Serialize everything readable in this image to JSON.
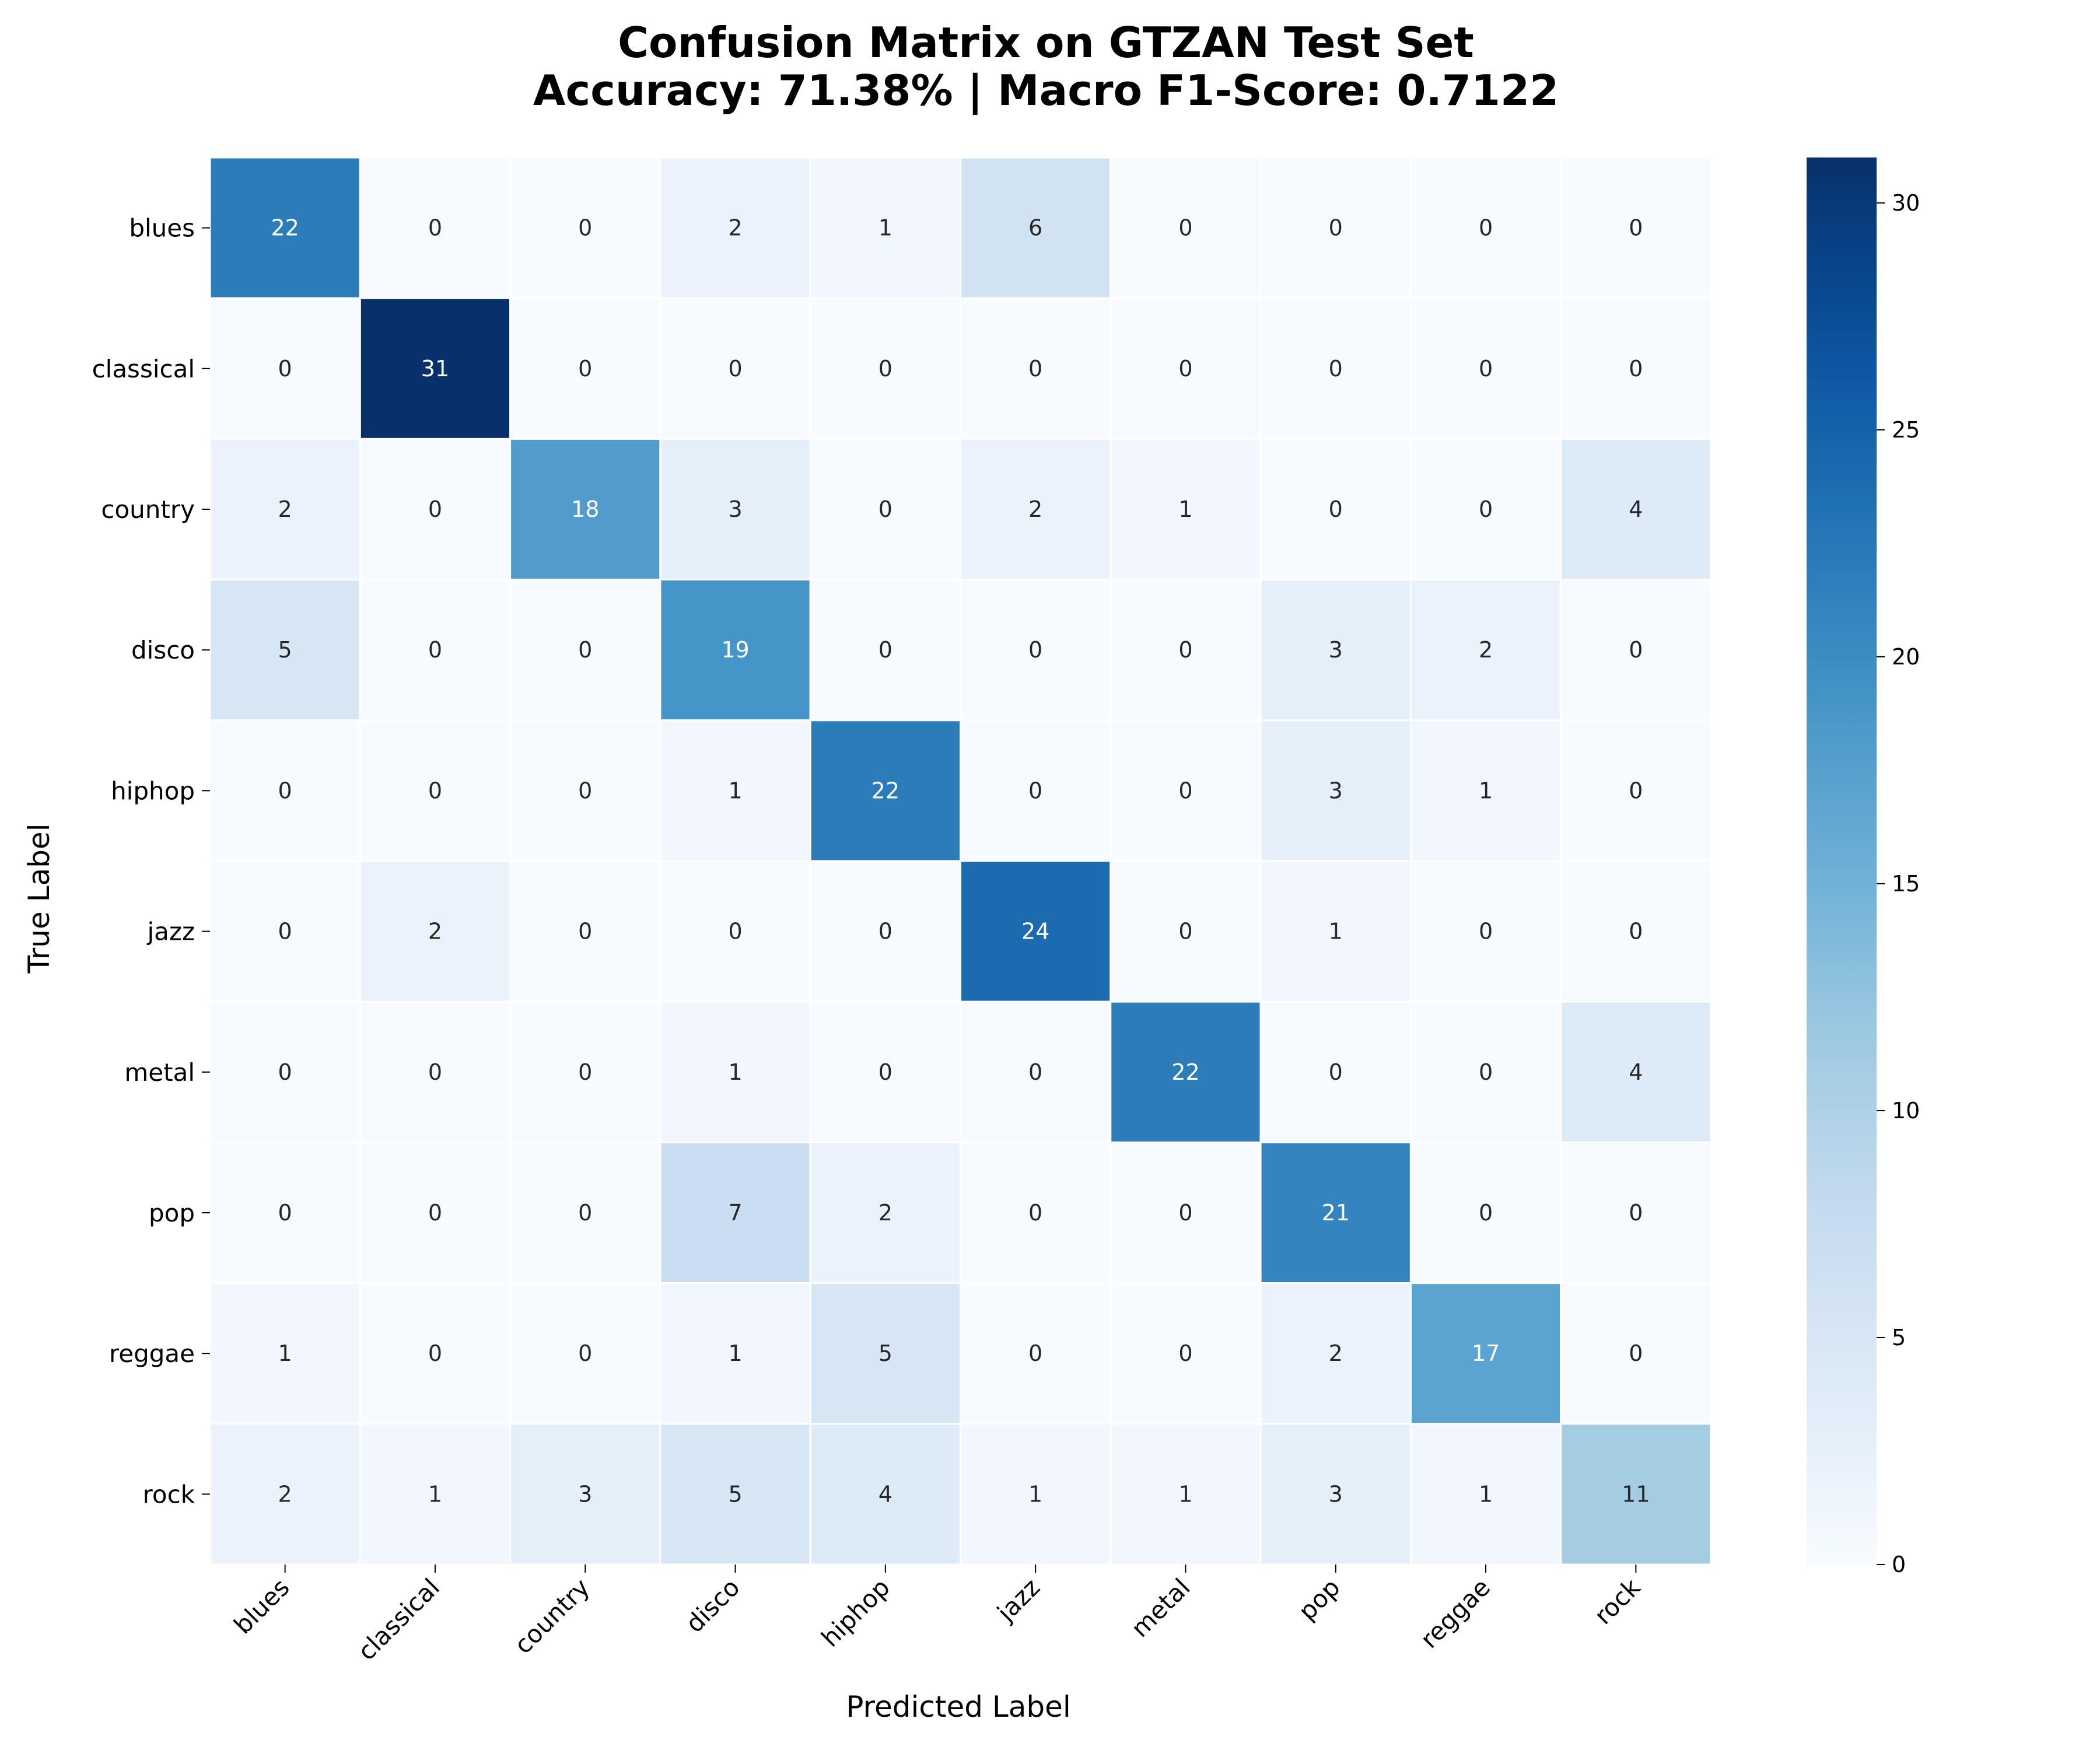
{
  "chart_data": {
    "type": "heatmap",
    "title": "Confusion Matrix on GTZAN Test Set",
    "subtitle": "Accuracy: 71.38% | Macro F1-Score: 0.7122",
    "xlabel": "Predicted Label",
    "ylabel": "True Label",
    "x_categories": [
      "blues",
      "classical",
      "country",
      "disco",
      "hiphop",
      "jazz",
      "metal",
      "pop",
      "reggae",
      "rock"
    ],
    "y_categories": [
      "blues",
      "classical",
      "country",
      "disco",
      "hiphop",
      "jazz",
      "metal",
      "pop",
      "reggae",
      "rock"
    ],
    "values": [
      [
        22,
        0,
        0,
        2,
        1,
        6,
        0,
        0,
        0,
        0
      ],
      [
        0,
        31,
        0,
        0,
        0,
        0,
        0,
        0,
        0,
        0
      ],
      [
        2,
        0,
        18,
        3,
        0,
        2,
        1,
        0,
        0,
        4
      ],
      [
        5,
        0,
        0,
        19,
        0,
        0,
        0,
        3,
        2,
        0
      ],
      [
        0,
        0,
        0,
        1,
        22,
        0,
        0,
        3,
        1,
        0
      ],
      [
        0,
        2,
        0,
        0,
        0,
        24,
        0,
        1,
        0,
        0
      ],
      [
        0,
        0,
        0,
        1,
        0,
        0,
        22,
        0,
        0,
        4
      ],
      [
        0,
        0,
        0,
        7,
        2,
        0,
        0,
        21,
        0,
        0
      ],
      [
        1,
        0,
        0,
        1,
        5,
        0,
        0,
        2,
        17,
        0
      ],
      [
        2,
        1,
        3,
        5,
        4,
        1,
        1,
        3,
        1,
        11
      ]
    ],
    "colormap": "Blues",
    "color_range": [
      0,
      31
    ],
    "colorbar_ticks": [
      0,
      5,
      10,
      15,
      20,
      25,
      30
    ],
    "annotations": true,
    "grid": false,
    "legend": "colorbar-right"
  }
}
